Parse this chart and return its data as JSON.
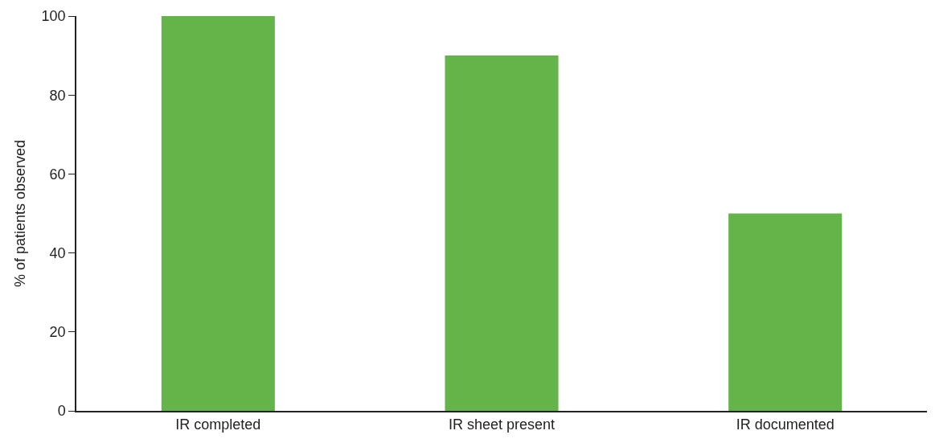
{
  "chart_data": {
    "type": "bar",
    "ylabel": "% of patients observed",
    "categories": [
      "IR completed",
      "IR sheet present",
      "IR documented"
    ],
    "values": [
      100,
      90,
      50
    ],
    "color": "#65b44a",
    "ylim": [
      0,
      100
    ],
    "yticks": [
      0,
      20,
      40,
      60,
      80,
      100
    ]
  }
}
